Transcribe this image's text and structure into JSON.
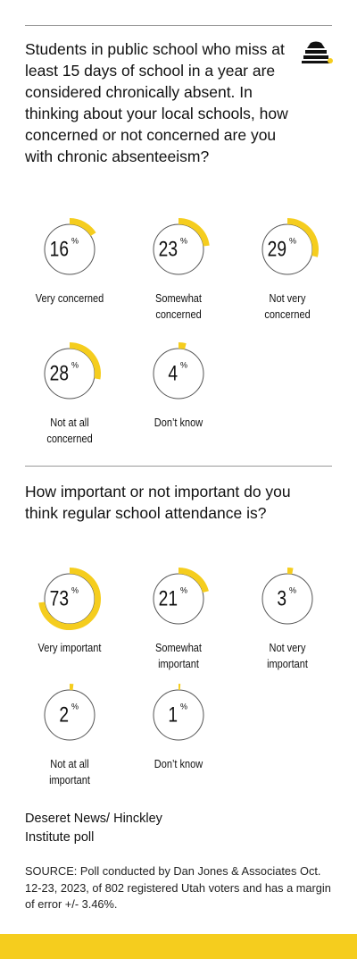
{
  "chart_data": [
    {
      "type": "donut",
      "title": "Students in public school who miss at least 15 days of school in a year are considered chronically absent. In thinking about your local schools, how concerned or not concerned are you with chronic absenteeism?",
      "categories": [
        "Very concerned",
        "Somewhat concerned",
        "Not very concerned",
        "Not at all concerned",
        "Don’t know"
      ],
      "values": [
        16,
        23,
        29,
        28,
        4
      ],
      "unit": "%",
      "color": "#f5cd1e"
    },
    {
      "type": "donut",
      "title": "How important or not important do you think regular school attendance is?",
      "categories": [
        "Very important",
        "Somewhat important",
        "Not very important",
        "Not at all important",
        "Don’t know"
      ],
      "values": [
        73,
        21,
        3,
        2,
        1
      ],
      "unit": "%",
      "color": "#f5cd1e"
    }
  ],
  "credit": "Deseret News/ Hinckley Institute poll",
  "source": "SOURCE: Poll conducted by Dan Jones & Associates Oct. 12-23, 2023, of 802 registered Utah voters and has a margin of error +/- 3.46%."
}
